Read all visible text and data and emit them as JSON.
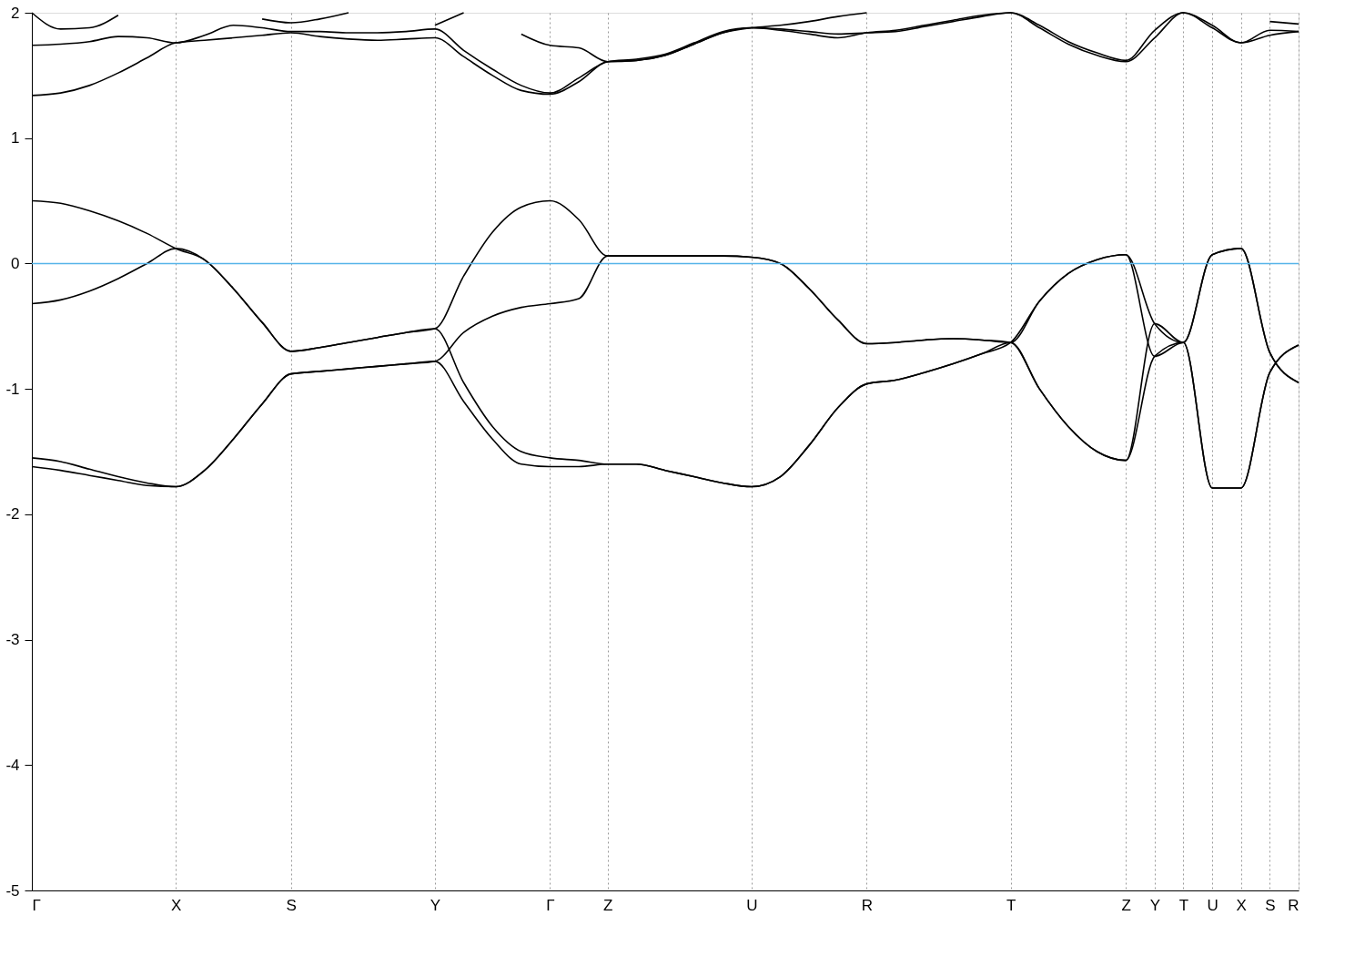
{
  "chart_data": {
    "type": "line",
    "categories": [
      "Γ",
      null,
      null,
      null,
      null,
      "X",
      null,
      null,
      null,
      "S",
      null,
      null,
      null,
      null,
      "Y",
      null,
      null,
      null,
      "Γ",
      null,
      "Z",
      null,
      null,
      null,
      null,
      "U",
      null,
      null,
      null,
      "R",
      null,
      null,
      null,
      null,
      "T",
      null,
      null,
      null,
      "Z",
      "Y",
      "T",
      "U",
      "X",
      "S",
      "R"
    ],
    "ylim": [
      -5,
      2
    ],
    "yticks": [
      -5,
      -4,
      -3,
      -2,
      -1,
      0,
      1,
      2
    ],
    "series": [
      {
        "color": "#000000",
        "values": [
          0.5,
          0.48,
          0.42,
          0.34,
          0.24,
          0.12,
          0.03,
          -0.2,
          -0.47,
          -0.7,
          -0.67,
          -0.63,
          -0.59,
          -0.55,
          -0.52,
          -0.1,
          0.25,
          0.45,
          0.5,
          0.35,
          0.06,
          0.06,
          0.06,
          0.06,
          0.06,
          0.05,
          0.0,
          -0.2,
          -0.45,
          -0.64,
          -0.63,
          -0.61,
          -0.6,
          -0.61,
          -0.63,
          -0.3,
          -0.08,
          0.03,
          0.07,
          -0.48,
          -0.63,
          0.07,
          0.12,
          -0.71,
          -0.95
        ]
      },
      {
        "color": "#000000",
        "values": [
          -0.32,
          -0.29,
          -0.22,
          -0.12,
          0.0,
          0.12,
          0.03,
          -0.2,
          -0.47,
          -0.7,
          -0.67,
          -0.63,
          -0.59,
          -0.55,
          -0.52,
          -0.95,
          -1.3,
          -1.5,
          -1.55,
          -1.57,
          -1.6,
          -1.6,
          -1.65,
          -1.7,
          -1.75,
          -1.78,
          -1.7,
          -1.45,
          -1.15,
          -0.96,
          -0.93,
          -0.87,
          -0.8,
          -0.72,
          -0.63,
          -1.0,
          -1.3,
          -1.5,
          -1.57,
          -0.74,
          -0.63,
          -1.79,
          -1.79,
          -0.87,
          -0.65
        ]
      },
      {
        "color": "#000000",
        "values": [
          -1.55,
          -1.58,
          -1.64,
          -1.7,
          -1.75,
          -1.78,
          -1.65,
          -1.4,
          -1.12,
          -0.88,
          -0.86,
          -0.84,
          -0.82,
          -0.8,
          -0.78,
          -0.55,
          -0.42,
          -0.35,
          -0.32,
          -0.28,
          0.06,
          0.06,
          0.06,
          0.06,
          0.06,
          0.05,
          0.0,
          -0.2,
          -0.45,
          -0.64,
          -0.63,
          -0.61,
          -0.6,
          -0.61,
          -0.63,
          -1.0,
          -1.3,
          -1.5,
          -1.57,
          -0.48,
          -0.63,
          0.07,
          0.12,
          -0.71,
          -0.95
        ]
      },
      {
        "color": "#000000",
        "values": [
          -1.62,
          -1.65,
          -1.69,
          -1.73,
          -1.77,
          -1.78,
          -1.65,
          -1.4,
          -1.12,
          -0.88,
          -0.86,
          -0.84,
          -0.82,
          -0.8,
          -0.78,
          -1.1,
          -1.4,
          -1.6,
          -1.62,
          -1.62,
          -1.6,
          -1.6,
          -1.65,
          -1.7,
          -1.75,
          -1.78,
          -1.7,
          -1.45,
          -1.15,
          -0.96,
          -0.93,
          -0.87,
          -0.8,
          -0.72,
          -0.63,
          -0.3,
          -0.08,
          0.03,
          0.07,
          -0.74,
          -0.63,
          -1.79,
          -1.79,
          -0.87,
          -0.65
        ]
      },
      {
        "color": "#000000",
        "values": [
          1.34,
          1.36,
          1.42,
          1.52,
          1.64,
          1.76,
          1.78,
          1.8,
          1.82,
          1.84,
          1.81,
          1.79,
          1.78,
          1.79,
          1.8,
          1.65,
          1.5,
          1.38,
          1.35,
          1.45,
          1.61,
          1.62,
          1.66,
          1.75,
          1.84,
          1.88,
          1.86,
          1.83,
          1.8,
          1.84,
          1.86,
          1.9,
          1.94,
          1.98,
          2.0,
          1.88,
          1.75,
          1.66,
          1.61,
          1.8,
          2.0,
          1.88,
          1.76,
          1.86,
          1.85
        ]
      },
      {
        "color": "#000000",
        "values": [
          1.74,
          1.75,
          1.77,
          1.81,
          1.8,
          1.76,
          1.82,
          1.9,
          1.88,
          1.85,
          1.85,
          1.84,
          1.84,
          1.85,
          1.87,
          1.7,
          1.55,
          1.42,
          1.36,
          1.48,
          1.61,
          1.63,
          1.67,
          1.76,
          1.85,
          1.88,
          1.87,
          1.85,
          1.83,
          1.84,
          1.85,
          1.89,
          1.93,
          1.97,
          2.0,
          1.9,
          1.77,
          1.68,
          1.62,
          1.86,
          2.0,
          1.9,
          1.76,
          1.82,
          1.85
        ]
      },
      {
        "color": "#000000",
        "values": [
          2.0,
          1.87,
          1.88,
          1.98,
          null,
          null,
          null,
          null,
          1.95,
          1.92,
          1.95,
          2.0,
          null,
          null,
          1.9,
          2.0,
          null,
          1.83,
          1.74,
          1.72,
          1.61,
          1.62,
          1.66,
          1.75,
          1.84,
          1.88,
          1.9,
          1.93,
          1.97,
          2.0,
          null,
          null,
          null,
          null,
          null,
          null,
          null,
          null,
          null,
          null,
          null,
          null,
          null,
          1.93,
          1.91
        ]
      }
    ],
    "ref_lines": [
      {
        "axis": "y",
        "value": 0,
        "color": "#56b4e9"
      }
    ],
    "grid": "x",
    "line_style": "solid",
    "marker": "none"
  }
}
